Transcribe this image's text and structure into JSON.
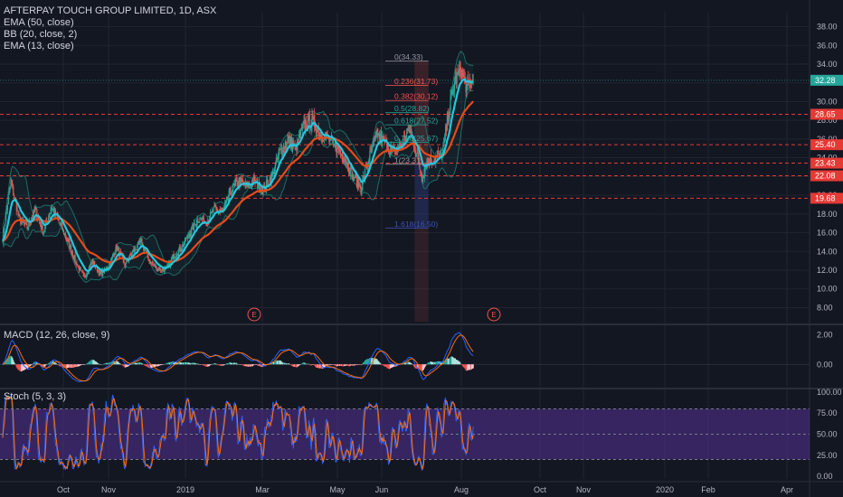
{
  "header": {
    "title": "AFTERPAY TOUCH GROUP LIMITED, 1D, ASX",
    "indicators": [
      "EMA (50, close)",
      "BB (20, close, 2)",
      "EMA (13, close)"
    ]
  },
  "panes": {
    "macd_label": "MACD (12, 26, close, 9)",
    "stoch_label": "Stoch (5, 3, 3)"
  },
  "chart_data": [
    {
      "type": "candlestick",
      "title": "AFTERPAY TOUCH GROUP LIMITED, 1D, ASX",
      "x_tick_labels": [
        "Oct",
        "Nov",
        "2019",
        "Mar",
        "May",
        "Jun",
        "Aug",
        "Oct",
        "Nov",
        "2020",
        "Feb",
        "Apr"
      ],
      "y_tick_labels": [
        "38.00",
        "36.00",
        "34.00",
        "32.00",
        "30.00",
        "28.00",
        "26.00",
        "24.00",
        "22.00",
        "20.00",
        "18.00",
        "16.00",
        "14.00",
        "12.00",
        "10.00",
        "8.00"
      ],
      "ylim": [
        6.5,
        39.5
      ],
      "last_price": "32.28",
      "close_path": [
        {
          "d": 0,
          "v": 15.5
        },
        {
          "d": 10,
          "v": 21.5
        },
        {
          "d": 20,
          "v": 17.5
        },
        {
          "d": 30,
          "v": 16.5
        },
        {
          "d": 40,
          "v": 18.5
        },
        {
          "d": 50,
          "v": 16.0
        },
        {
          "d": 60,
          "v": 18.8
        },
        {
          "d": 70,
          "v": 17.0
        },
        {
          "d": 80,
          "v": 15.0
        },
        {
          "d": 90,
          "v": 12.8
        },
        {
          "d": 100,
          "v": 11.2
        },
        {
          "d": 110,
          "v": 13.0
        },
        {
          "d": 120,
          "v": 11.5
        },
        {
          "d": 130,
          "v": 12.5
        },
        {
          "d": 140,
          "v": 14.5
        },
        {
          "d": 150,
          "v": 12.5
        },
        {
          "d": 160,
          "v": 14.0
        },
        {
          "d": 170,
          "v": 15.0
        },
        {
          "d": 180,
          "v": 13.0
        },
        {
          "d": 190,
          "v": 12.2
        },
        {
          "d": 200,
          "v": 12.0
        },
        {
          "d": 210,
          "v": 13.5
        },
        {
          "d": 220,
          "v": 14.5
        },
        {
          "d": 230,
          "v": 16.0
        },
        {
          "d": 240,
          "v": 17.5
        },
        {
          "d": 250,
          "v": 17.2
        },
        {
          "d": 260,
          "v": 18.5
        },
        {
          "d": 270,
          "v": 18.2
        },
        {
          "d": 280,
          "v": 20.5
        },
        {
          "d": 290,
          "v": 21.5
        },
        {
          "d": 300,
          "v": 21.0
        },
        {
          "d": 310,
          "v": 21.5
        },
        {
          "d": 320,
          "v": 20.5
        },
        {
          "d": 330,
          "v": 22.0
        },
        {
          "d": 340,
          "v": 24.5
        },
        {
          "d": 350,
          "v": 26.0
        },
        {
          "d": 360,
          "v": 25.0
        },
        {
          "d": 370,
          "v": 27.5
        },
        {
          "d": 380,
          "v": 28.0
        },
        {
          "d": 390,
          "v": 26.5
        },
        {
          "d": 400,
          "v": 26.0
        },
        {
          "d": 410,
          "v": 25.0
        },
        {
          "d": 420,
          "v": 24.0
        },
        {
          "d": 430,
          "v": 22.0
        },
        {
          "d": 440,
          "v": 20.8
        },
        {
          "d": 450,
          "v": 24.0
        },
        {
          "d": 460,
          "v": 26.5
        },
        {
          "d": 470,
          "v": 25.5
        },
        {
          "d": 480,
          "v": 24.5
        },
        {
          "d": 490,
          "v": 25.5
        },
        {
          "d": 500,
          "v": 27.0
        },
        {
          "d": 510,
          "v": 24.0
        },
        {
          "d": 515,
          "v": 21.8
        },
        {
          "d": 520,
          "v": 23.5
        },
        {
          "d": 530,
          "v": 23.8
        },
        {
          "d": 540,
          "v": 24.5
        },
        {
          "d": 550,
          "v": 30.0
        },
        {
          "d": 555,
          "v": 32.0
        },
        {
          "d": 562,
          "v": 33.5
        },
        {
          "d": 570,
          "v": 31.5
        },
        {
          "d": 578,
          "v": 32.28
        }
      ],
      "price_levels": [
        {
          "value": 28.65,
          "label": "28.65"
        },
        {
          "value": 25.4,
          "label": "25.40"
        },
        {
          "value": 23.43,
          "label": "23.43"
        },
        {
          "value": 22.08,
          "label": "22.08"
        },
        {
          "value": 19.68,
          "label": "19.68"
        }
      ],
      "fibonacci": [
        {
          "label": "0(34.33)",
          "value": 34.33
        },
        {
          "label": "0.236(31.73)",
          "value": 31.73
        },
        {
          "label": "0.382(30.12)",
          "value": 30.12
        },
        {
          "label": "0.5(28.82)",
          "value": 28.82
        },
        {
          "label": "0.618(27.52)",
          "value": 27.52
        },
        {
          "label": "0.786(25.67)",
          "value": 25.67
        },
        {
          "label": "1(23.31)",
          "value": 23.31
        },
        {
          "label": "1.618(16.50)",
          "value": 16.5
        }
      ],
      "earnings_markers": [
        "E",
        "E"
      ],
      "colors": {
        "up": "#26a69a",
        "down": "#ef5350",
        "ema50": "#e64a19",
        "ema13": "#26c6da",
        "bb": "#1e6b63",
        "level": "#e53935",
        "price": "#26a69a"
      }
    },
    {
      "type": "line",
      "title": "MACD (12, 26, close, 9)",
      "y_tick_labels": [
        "2.00",
        "0.00"
      ],
      "ylim": [
        -1.5,
        2.5
      ]
    },
    {
      "type": "line",
      "title": "Stoch (5, 3, 3)",
      "y_tick_labels": [
        "100.00",
        "75.00",
        "50.00",
        "25.00",
        "0.00"
      ],
      "ylim": [
        -3,
        103
      ],
      "band": [
        20,
        80
      ]
    }
  ]
}
